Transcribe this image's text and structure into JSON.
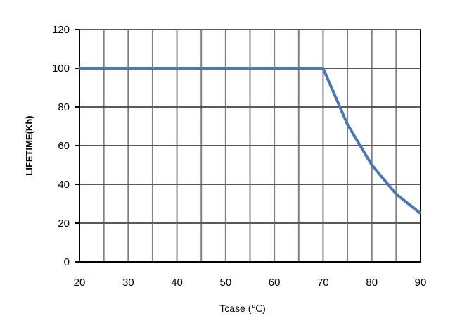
{
  "chart_data": {
    "type": "line",
    "title": "",
    "xlabel": "Tcase (℃)",
    "ylabel": "LIFETIME(Kh)",
    "xlim": [
      20,
      90
    ],
    "ylim": [
      0,
      120
    ],
    "x_ticks": [
      20,
      30,
      40,
      50,
      60,
      70,
      80,
      90
    ],
    "y_ticks": [
      0,
      20,
      40,
      60,
      80,
      100,
      120
    ],
    "x_grid_step": 5,
    "y_grid_step": 20,
    "grid": true,
    "legend": "none",
    "series": [
      {
        "x": [
          20,
          70,
          75,
          80,
          85,
          90
        ],
        "y": [
          100,
          100,
          71,
          50,
          35,
          25
        ],
        "color": "#4A78B5"
      }
    ]
  }
}
